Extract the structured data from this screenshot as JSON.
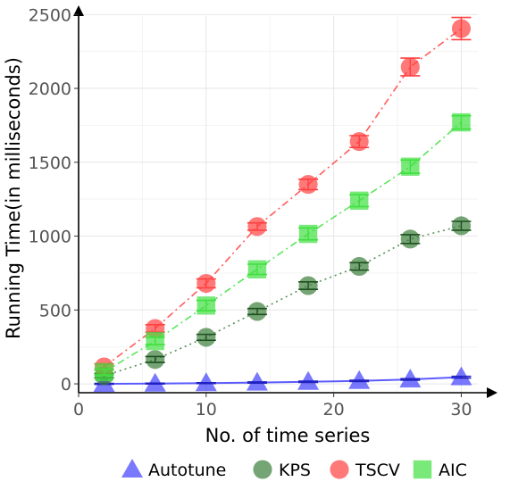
{
  "chart_data": {
    "type": "scatter",
    "xlabel": "No. of time series",
    "ylabel": "Running Time(in milliseconds)",
    "xlim": [
      0,
      32
    ],
    "ylim": [
      -60,
      2550
    ],
    "x_ticks": [
      0,
      10,
      20,
      30
    ],
    "y_ticks": [
      0,
      500,
      1000,
      1500,
      2000,
      2500
    ],
    "x_tick_labels": [
      "0",
      "10",
      "20",
      "30"
    ],
    "y_tick_labels": [
      "0",
      "500",
      "1000",
      "1500",
      "2000",
      "2500"
    ],
    "grid": true,
    "legend_position": "bottom",
    "x": [
      2,
      6,
      10,
      14,
      18,
      22,
      26,
      30
    ],
    "series": [
      {
        "name": "Autotune",
        "marker": "triangle",
        "color": "#4040ff",
        "line_style": "solid",
        "values": [
          0,
          2,
          5,
          9,
          14,
          20,
          30,
          45
        ],
        "error": [
          3,
          3,
          3,
          4,
          4,
          4,
          5,
          6
        ]
      },
      {
        "name": "KPS",
        "marker": "circle",
        "color": "#3a7d3a",
        "line_style": "dotted",
        "values": [
          55,
          165,
          315,
          490,
          665,
          795,
          980,
          1070
        ],
        "error": [
          15,
          20,
          20,
          20,
          25,
          25,
          30,
          30
        ]
      },
      {
        "name": "TSCV",
        "marker": "circle",
        "color": "#ff4040",
        "line_style": "dashdot",
        "values": [
          115,
          375,
          680,
          1065,
          1350,
          1640,
          2145,
          2405
        ],
        "error": [
          20,
          25,
          30,
          25,
          35,
          40,
          60,
          75
        ]
      },
      {
        "name": "AIC",
        "marker": "square",
        "color": "#40e040",
        "line_style": "dashdot",
        "values": [
          80,
          290,
          530,
          775,
          1015,
          1240,
          1470,
          1770
        ],
        "error": [
          20,
          25,
          35,
          35,
          40,
          40,
          45,
          45
        ]
      }
    ]
  }
}
